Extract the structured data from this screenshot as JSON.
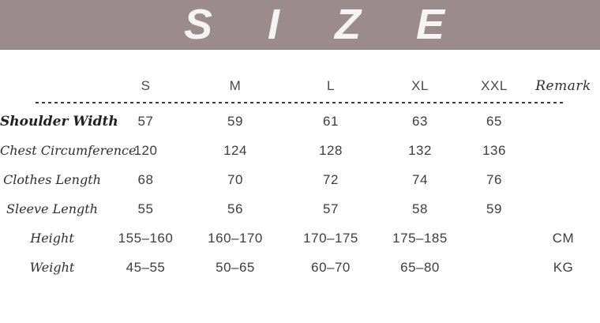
{
  "banner": {
    "title": "SIZE",
    "letters": [
      "S",
      "I",
      "Z",
      "E"
    ],
    "background_color": "#9c8b8c",
    "text_color": "#f5f4f2"
  },
  "table": {
    "columns": [
      "",
      "S",
      "M",
      "L",
      "XL",
      "XXL",
      "Remark"
    ],
    "rows": [
      {
        "label": "Shoulder Width",
        "values": [
          "57",
          "59",
          "61",
          "63",
          "65",
          ""
        ]
      },
      {
        "label": "Chest Circumference",
        "values": [
          "120",
          "124",
          "128",
          "132",
          "136",
          ""
        ]
      },
      {
        "label": "Clothes Length",
        "values": [
          "68",
          "70",
          "72",
          "74",
          "76",
          ""
        ]
      },
      {
        "label": "Sleeve Length",
        "values": [
          "55",
          "56",
          "57",
          "58",
          "59",
          ""
        ]
      },
      {
        "label": "Height",
        "values": [
          "155–160",
          "160–170",
          "170–175",
          "175–185",
          "",
          "CM"
        ]
      },
      {
        "label": "Weight",
        "values": [
          "45–55",
          "50–65",
          "60–70",
          "65–80",
          "",
          "KG"
        ]
      }
    ],
    "units": {
      "height": "CM",
      "weight": "KG"
    },
    "divider_color": "#3a3a3a"
  }
}
